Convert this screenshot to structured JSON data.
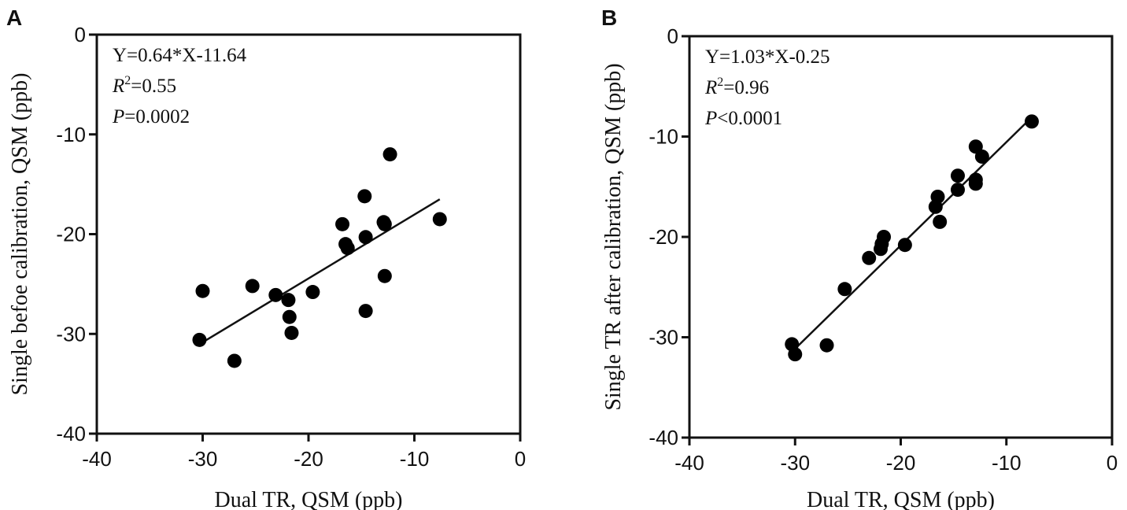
{
  "chart_data": [
    {
      "type": "scatter",
      "panel_label": "A",
      "xlabel": "Dual TR, QSM (ppb)",
      "ylabel": "Single befoe calibration, QSM (ppb)",
      "xlim": [
        -40,
        0
      ],
      "ylim": [
        -40,
        0
      ],
      "xticks": [
        -40,
        -30,
        -20,
        -10,
        0
      ],
      "yticks": [
        0,
        -10,
        -20,
        -30,
        -40
      ],
      "grid": false,
      "annotations": [
        {
          "type": "equation",
          "text": "Y=0.64*X-11.64"
        },
        {
          "type": "r2",
          "symbol": "R",
          "superscript": "2",
          "text": "=0.55"
        },
        {
          "type": "p",
          "symbol": "P",
          "text": "=0.0002"
        }
      ],
      "fit_line": {
        "slope": 0.64,
        "intercept": -11.64,
        "x_range": [
          -30.3,
          -7.6
        ]
      },
      "points": [
        {
          "x": -30.3,
          "y": -30.6
        },
        {
          "x": -30.0,
          "y": -25.7
        },
        {
          "x": -27.0,
          "y": -32.7
        },
        {
          "x": -25.3,
          "y": -25.2
        },
        {
          "x": -23.1,
          "y": -26.1
        },
        {
          "x": -21.9,
          "y": -26.6
        },
        {
          "x": -21.8,
          "y": -28.3
        },
        {
          "x": -21.6,
          "y": -29.9
        },
        {
          "x": -19.6,
          "y": -25.8
        },
        {
          "x": -16.8,
          "y": -19.0
        },
        {
          "x": -16.5,
          "y": -21.0
        },
        {
          "x": -16.3,
          "y": -21.4
        },
        {
          "x": -14.7,
          "y": -16.2
        },
        {
          "x": -14.6,
          "y": -20.3
        },
        {
          "x": -14.6,
          "y": -27.7
        },
        {
          "x": -12.9,
          "y": -18.8
        },
        {
          "x": -12.8,
          "y": -19.0
        },
        {
          "x": -12.8,
          "y": -24.2
        },
        {
          "x": -12.3,
          "y": -12.0
        },
        {
          "x": -7.6,
          "y": -18.5
        }
      ]
    },
    {
      "type": "scatter",
      "panel_label": "B",
      "xlabel": "Dual TR, QSM (ppb)",
      "ylabel": "Single TR after calibration, QSM (ppb)",
      "xlim": [
        -40,
        0
      ],
      "ylim": [
        -40,
        0
      ],
      "xticks": [
        -40,
        -30,
        -20,
        -10,
        0
      ],
      "yticks": [
        0,
        -10,
        -20,
        -30,
        -40
      ],
      "grid": false,
      "annotations": [
        {
          "type": "equation",
          "text": "Y=1.03*X-0.25"
        },
        {
          "type": "r2",
          "symbol": "R",
          "superscript": "2",
          "text": "=0.96"
        },
        {
          "type": "p",
          "symbol": "P",
          "text": "<0.0001"
        }
      ],
      "fit_line": {
        "slope": 1.03,
        "intercept": -0.25,
        "x_range": [
          -30.3,
          -7.6
        ]
      },
      "points": [
        {
          "x": -30.3,
          "y": -30.7
        },
        {
          "x": -30.0,
          "y": -31.7
        },
        {
          "x": -27.0,
          "y": -30.8
        },
        {
          "x": -25.3,
          "y": -25.2
        },
        {
          "x": -23.0,
          "y": -22.1
        },
        {
          "x": -21.9,
          "y": -21.2
        },
        {
          "x": -21.8,
          "y": -20.7
        },
        {
          "x": -21.6,
          "y": -20.0
        },
        {
          "x": -19.6,
          "y": -20.8
        },
        {
          "x": -16.7,
          "y": -17.0
        },
        {
          "x": -16.5,
          "y": -16.0
        },
        {
          "x": -16.3,
          "y": -18.5
        },
        {
          "x": -14.6,
          "y": -13.9
        },
        {
          "x": -14.6,
          "y": -15.3
        },
        {
          "x": -12.9,
          "y": -14.3
        },
        {
          "x": -12.9,
          "y": -14.7
        },
        {
          "x": -12.9,
          "y": -11.0
        },
        {
          "x": -12.3,
          "y": -12.0
        },
        {
          "x": -7.6,
          "y": -8.5
        }
      ]
    }
  ]
}
